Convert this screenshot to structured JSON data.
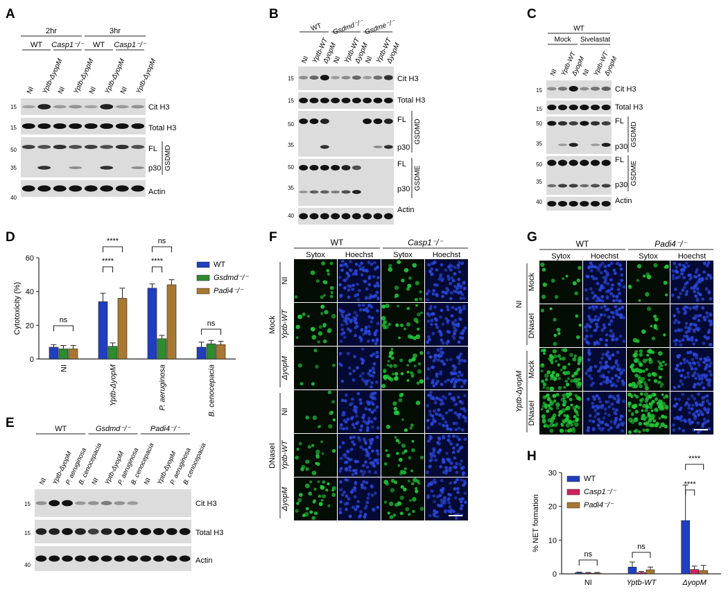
{
  "colors": {
    "wt": "#1f3fbf",
    "gsdmd": "#2e8b2e",
    "padi4": "#a87832",
    "casp1": "#d0215f",
    "band": "#111111",
    "blot_bg": "#dcdcdc",
    "sytox": "#22c83a",
    "hoechst": "#2a46d8"
  },
  "panels": {
    "A": "A",
    "B": "B",
    "C": "C",
    "D": "D",
    "E": "E",
    "F": "F",
    "G": "G",
    "H": "H"
  },
  "blot_a": {
    "times": [
      "2hr",
      "3hr"
    ],
    "groups": [
      "WT",
      "Casp1⁻/⁻",
      "WT",
      "Casp1⁻/⁻"
    ],
    "lanes": [
      "NI",
      "Yptb-ΔyopM",
      "NI",
      "Yptb-ΔyopM",
      "NI",
      "Yptb-ΔyopM",
      "NI",
      "Yptb-ΔyopM"
    ],
    "rows": [
      "Cit H3",
      "Total H3",
      "FL",
      "p30",
      "Actin"
    ],
    "side_label": "GSDMD",
    "mw": [
      "15",
      "15",
      "50",
      "35",
      "40"
    ]
  },
  "blot_b": {
    "groups": [
      "WT",
      "Gsdmd⁻/⁻",
      "Gsdme⁻/⁻"
    ],
    "lanes": [
      "NI",
      "Yptb-WT",
      "ΔyopM",
      "NI",
      "Yptb-WT",
      "ΔyopM",
      "NI",
      "Yptb-WT",
      "ΔyopM"
    ],
    "rows": [
      "Cit H3",
      "Total H3",
      "FL",
      "p30",
      "FL",
      "p30",
      "Actin"
    ],
    "side_labels": [
      "GSDMD",
      "GSDME"
    ],
    "mw": [
      "15",
      "15",
      "50",
      "35",
      "50",
      "35",
      "40"
    ]
  },
  "blot_c": {
    "header": "WT",
    "groups": [
      "Mock",
      "Sivelastat"
    ],
    "lanes": [
      "NI",
      "Yptb-WT",
      "ΔyopM",
      "NI",
      "Yptb-WT",
      "ΔyopM"
    ],
    "rows": [
      "Cit H3",
      "Total H3",
      "FL",
      "p30",
      "FL",
      "p30",
      "Actin"
    ],
    "side_labels": [
      "GSDMD",
      "GSDME"
    ],
    "mw": [
      "15",
      "15",
      "50",
      "35",
      "50",
      "35",
      "40"
    ]
  },
  "blot_e": {
    "groups": [
      "WT",
      "Gsdmd⁻/⁻",
      "Padi4⁻/⁻"
    ],
    "lanes": [
      "NI",
      "Yptb-ΔyopM",
      "P. aeruginosa",
      "B. cenocepacia",
      "NI",
      "Yptb-ΔyopM",
      "P. aeruginosa",
      "B. cenocepacia",
      "NI",
      "Yptb-ΔyopM",
      "P. aeruginosa",
      "B. cenocepacia"
    ],
    "rows": [
      "Cit H3",
      "Total H3",
      "Actin"
    ],
    "mw": [
      "15",
      "15",
      "40"
    ]
  },
  "chart_data": [
    {
      "type": "bar",
      "categories": [
        "NI",
        "Yptb-ΔyopM",
        "P. aeruginosa",
        "B. cenocepacia"
      ],
      "series": [
        {
          "name": "WT",
          "values": [
            7,
            34,
            42,
            7
          ],
          "errors": [
            1.5,
            5,
            2.5,
            3
          ]
        },
        {
          "name": "Gsdmd⁻/⁻",
          "values": [
            6,
            7.5,
            12,
            9
          ],
          "errors": [
            2,
            2,
            2,
            2
          ]
        },
        {
          "name": "Padi4⁻/⁻",
          "values": [
            6,
            36,
            44,
            8.5
          ],
          "errors": [
            2,
            6,
            3,
            2
          ]
        }
      ],
      "ylabel": "Cytotoxicity (%)",
      "ylim": [
        0,
        60
      ],
      "yticks": [
        "0",
        "20",
        "40",
        "60"
      ],
      "significance": [
        "ns",
        "****",
        "ns",
        "****",
        "ns",
        "ns"
      ]
    },
    {
      "type": "bar",
      "categories": [
        "NI",
        "Yptb-WT",
        "ΔyopM"
      ],
      "series": [
        {
          "name": "WT",
          "values": [
            0.3,
            2,
            15.8
          ],
          "errors": [
            0.2,
            1.5,
            10.5
          ]
        },
        {
          "name": "Casp1⁻/⁻",
          "values": [
            0.2,
            0.4,
            1.3
          ],
          "errors": [
            0.2,
            0.3,
            1
          ]
        },
        {
          "name": "Padi4⁻/⁻",
          "values": [
            0.2,
            1.2,
            1
          ],
          "errors": [
            0.2,
            0.8,
            1.5
          ]
        }
      ],
      "ylabel": "% NET formation",
      "ylim": [
        0,
        30
      ],
      "yticks": [
        "0",
        "10",
        "20",
        "30"
      ],
      "significance": [
        "ns",
        "ns",
        "****",
        "****"
      ]
    }
  ],
  "micro_f": {
    "groups": [
      "WT",
      "Casp1⁻/⁻"
    ],
    "channels": [
      "Sytox",
      "Hoechst",
      "Sytox",
      "Hoechst"
    ],
    "rows": [
      "NI",
      "Yptb-WT",
      "ΔyopM",
      "NI",
      "Yptb-WT",
      "ΔyopM"
    ],
    "treatments": [
      "Mock",
      "DNaseI"
    ]
  },
  "micro_g": {
    "groups": [
      "WT",
      "Padi4⁻/⁻"
    ],
    "channels": [
      "Sytox",
      "Hoechst",
      "Sytox",
      "Hoechst"
    ],
    "rows": [
      "Mock",
      "DNaseI",
      "Mock",
      "DNaseI"
    ],
    "conditions": [
      "NI",
      "Yptb-ΔyopM"
    ]
  }
}
